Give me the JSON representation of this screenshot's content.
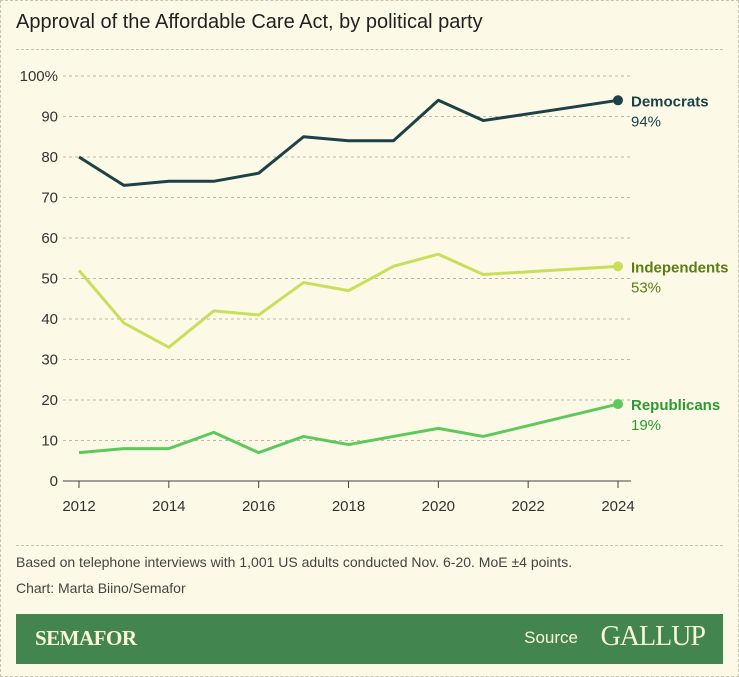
{
  "title": "Approval of the Affordable Care Act, by political party",
  "note": "Based on telephone interviews with 1,001 US adults conducted Nov. 6-20. MoE ±4 points.",
  "credit": "Chart: Marta Biino/Semafor",
  "footer": {
    "brand": "SEMAFOR",
    "source_label": "Source",
    "source_logo": "GALLUP"
  },
  "chart_data": {
    "type": "line",
    "x": [
      2012,
      2013,
      2014,
      2015,
      2016,
      2017,
      2018,
      2019,
      2020,
      2021,
      2024
    ],
    "xticks": [
      "2012",
      "2014",
      "2016",
      "2018",
      "2020",
      "2022",
      "2024"
    ],
    "yticks": [
      "0",
      "10",
      "20",
      "30",
      "40",
      "50",
      "60",
      "70",
      "80",
      "90",
      "100%"
    ],
    "xlim": [
      2012,
      2024
    ],
    "ylim": [
      0,
      100
    ],
    "grid": true,
    "series": [
      {
        "name": "Democrats",
        "end_label": "94%",
        "color": "#1c4247",
        "label_color": "#1c4247",
        "values": [
          80,
          73,
          74,
          74,
          76,
          85,
          84,
          84,
          94,
          89,
          94
        ]
      },
      {
        "name": "Independents",
        "end_label": "53%",
        "color": "#c8df5c",
        "label_color": "#5b7d12",
        "values": [
          52,
          39,
          33,
          42,
          41,
          49,
          47,
          53,
          56,
          51,
          53
        ]
      },
      {
        "name": "Republicans",
        "end_label": "19%",
        "color": "#5dc95d",
        "label_color": "#2c9a34",
        "values": [
          7,
          8,
          8,
          12,
          7,
          11,
          9,
          11,
          13,
          11,
          19
        ]
      }
    ]
  }
}
